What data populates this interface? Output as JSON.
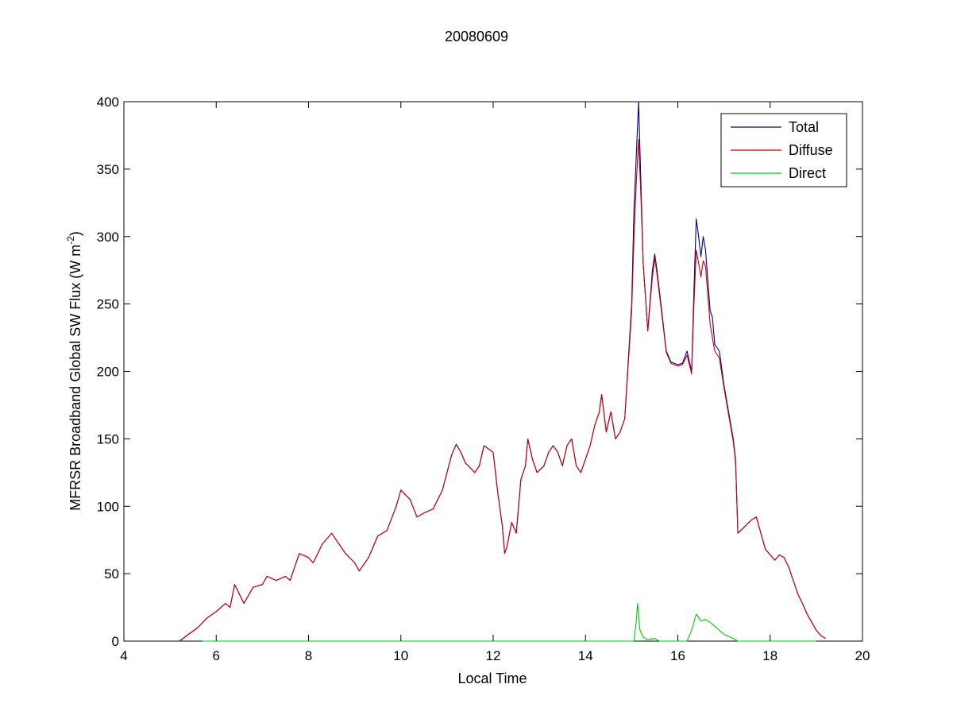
{
  "chart_data": {
    "type": "line",
    "title": "20080609",
    "xlabel": "Local Time",
    "ylabel": "MFRSR Broadband Global SW Flux (W m",
    "ylabel_sup": "-2",
    "ylabel_end": ")",
    "xlim": [
      4,
      20
    ],
    "ylim": [
      0,
      400
    ],
    "xticks": [
      "4",
      "6",
      "8",
      "10",
      "12",
      "14",
      "16",
      "18",
      "20"
    ],
    "yticks": [
      "0",
      "50",
      "100",
      "150",
      "200",
      "250",
      "300",
      "350",
      "400"
    ],
    "grid": false,
    "legend_position": "top-right",
    "series": [
      {
        "name": "Total",
        "color": "#00008b",
        "points": [
          [
            5.2,
            0
          ],
          [
            5.4,
            5
          ],
          [
            5.6,
            10
          ],
          [
            5.8,
            17
          ],
          [
            6.0,
            22
          ],
          [
            6.2,
            28
          ],
          [
            6.3,
            25
          ],
          [
            6.4,
            42
          ],
          [
            6.5,
            35
          ],
          [
            6.6,
            28
          ],
          [
            6.8,
            40
          ],
          [
            7.0,
            42
          ],
          [
            7.1,
            48
          ],
          [
            7.3,
            45
          ],
          [
            7.5,
            48
          ],
          [
            7.6,
            45
          ],
          [
            7.8,
            65
          ],
          [
            8.0,
            62
          ],
          [
            8.1,
            58
          ],
          [
            8.3,
            72
          ],
          [
            8.5,
            80
          ],
          [
            8.6,
            75
          ],
          [
            8.8,
            65
          ],
          [
            9.0,
            58
          ],
          [
            9.1,
            52
          ],
          [
            9.3,
            62
          ],
          [
            9.5,
            78
          ],
          [
            9.7,
            82
          ],
          [
            9.9,
            100
          ],
          [
            10.0,
            112
          ],
          [
            10.2,
            105
          ],
          [
            10.35,
            92
          ],
          [
            10.5,
            95
          ],
          [
            10.7,
            98
          ],
          [
            10.9,
            112
          ],
          [
            11.1,
            138
          ],
          [
            11.2,
            146
          ],
          [
            11.3,
            140
          ],
          [
            11.4,
            132
          ],
          [
            11.6,
            125
          ],
          [
            11.7,
            130
          ],
          [
            11.8,
            145
          ],
          [
            12.0,
            140
          ],
          [
            12.1,
            110
          ],
          [
            12.2,
            85
          ],
          [
            12.25,
            65
          ],
          [
            12.3,
            70
          ],
          [
            12.4,
            88
          ],
          [
            12.5,
            80
          ],
          [
            12.6,
            120
          ],
          [
            12.7,
            130
          ],
          [
            12.75,
            150
          ],
          [
            12.85,
            135
          ],
          [
            12.95,
            125
          ],
          [
            13.1,
            130
          ],
          [
            13.2,
            140
          ],
          [
            13.3,
            145
          ],
          [
            13.4,
            140
          ],
          [
            13.5,
            130
          ],
          [
            13.6,
            145
          ],
          [
            13.7,
            150
          ],
          [
            13.8,
            130
          ],
          [
            13.9,
            125
          ],
          [
            14.0,
            135
          ],
          [
            14.1,
            145
          ],
          [
            14.2,
            160
          ],
          [
            14.3,
            170
          ],
          [
            14.35,
            183
          ],
          [
            14.45,
            155
          ],
          [
            14.55,
            170
          ],
          [
            14.65,
            150
          ],
          [
            14.75,
            155
          ],
          [
            14.85,
            165
          ],
          [
            15.0,
            250
          ],
          [
            15.05,
            320
          ],
          [
            15.1,
            360
          ],
          [
            15.15,
            400
          ],
          [
            15.2,
            340
          ],
          [
            15.25,
            280
          ],
          [
            15.35,
            230
          ],
          [
            15.45,
            275
          ],
          [
            15.5,
            287
          ],
          [
            15.55,
            275
          ],
          [
            15.65,
            245
          ],
          [
            15.75,
            215
          ],
          [
            15.85,
            207
          ],
          [
            16.0,
            205
          ],
          [
            16.1,
            206
          ],
          [
            16.2,
            215
          ],
          [
            16.3,
            200
          ],
          [
            16.35,
            260
          ],
          [
            16.4,
            313
          ],
          [
            16.45,
            300
          ],
          [
            16.5,
            285
          ],
          [
            16.55,
            300
          ],
          [
            16.6,
            290
          ],
          [
            16.7,
            245
          ],
          [
            16.75,
            240
          ],
          [
            16.8,
            220
          ],
          [
            16.9,
            215
          ],
          [
            17.0,
            190
          ],
          [
            17.1,
            170
          ],
          [
            17.2,
            150
          ],
          [
            17.25,
            135
          ],
          [
            17.3,
            80
          ],
          [
            17.45,
            85
          ],
          [
            17.6,
            90
          ],
          [
            17.7,
            92
          ],
          [
            17.8,
            80
          ],
          [
            17.9,
            68
          ],
          [
            18.0,
            64
          ],
          [
            18.1,
            60
          ],
          [
            18.2,
            64
          ],
          [
            18.3,
            62
          ],
          [
            18.4,
            55
          ],
          [
            18.5,
            45
          ],
          [
            18.6,
            35
          ],
          [
            18.7,
            28
          ],
          [
            18.8,
            20
          ],
          [
            18.9,
            14
          ],
          [
            19.0,
            8
          ],
          [
            19.1,
            4
          ],
          [
            19.2,
            2
          ]
        ]
      },
      {
        "name": "Diffuse",
        "color": "#cc0000",
        "points": [
          [
            5.2,
            0
          ],
          [
            5.4,
            5
          ],
          [
            5.6,
            10
          ],
          [
            5.8,
            17
          ],
          [
            6.0,
            22
          ],
          [
            6.2,
            28
          ],
          [
            6.3,
            25
          ],
          [
            6.4,
            42
          ],
          [
            6.5,
            35
          ],
          [
            6.6,
            28
          ],
          [
            6.8,
            40
          ],
          [
            7.0,
            42
          ],
          [
            7.1,
            48
          ],
          [
            7.3,
            45
          ],
          [
            7.5,
            48
          ],
          [
            7.6,
            45
          ],
          [
            7.8,
            65
          ],
          [
            8.0,
            62
          ],
          [
            8.1,
            58
          ],
          [
            8.3,
            72
          ],
          [
            8.5,
            80
          ],
          [
            8.6,
            75
          ],
          [
            8.8,
            65
          ],
          [
            9.0,
            58
          ],
          [
            9.1,
            52
          ],
          [
            9.3,
            62
          ],
          [
            9.5,
            78
          ],
          [
            9.7,
            82
          ],
          [
            9.9,
            100
          ],
          [
            10.0,
            112
          ],
          [
            10.2,
            105
          ],
          [
            10.35,
            92
          ],
          [
            10.5,
            95
          ],
          [
            10.7,
            98
          ],
          [
            10.9,
            112
          ],
          [
            11.1,
            138
          ],
          [
            11.2,
            146
          ],
          [
            11.3,
            140
          ],
          [
            11.4,
            132
          ],
          [
            11.6,
            125
          ],
          [
            11.7,
            130
          ],
          [
            11.8,
            145
          ],
          [
            12.0,
            140
          ],
          [
            12.1,
            110
          ],
          [
            12.2,
            85
          ],
          [
            12.25,
            65
          ],
          [
            12.3,
            70
          ],
          [
            12.4,
            88
          ],
          [
            12.5,
            80
          ],
          [
            12.6,
            120
          ],
          [
            12.7,
            130
          ],
          [
            12.75,
            150
          ],
          [
            12.85,
            135
          ],
          [
            12.95,
            125
          ],
          [
            13.1,
            130
          ],
          [
            13.2,
            140
          ],
          [
            13.3,
            145
          ],
          [
            13.4,
            140
          ],
          [
            13.5,
            130
          ],
          [
            13.6,
            145
          ],
          [
            13.7,
            150
          ],
          [
            13.8,
            130
          ],
          [
            13.9,
            125
          ],
          [
            14.0,
            135
          ],
          [
            14.1,
            145
          ],
          [
            14.2,
            160
          ],
          [
            14.3,
            170
          ],
          [
            14.35,
            183
          ],
          [
            14.45,
            155
          ],
          [
            14.55,
            170
          ],
          [
            14.65,
            150
          ],
          [
            14.75,
            155
          ],
          [
            14.85,
            165
          ],
          [
            15.0,
            245
          ],
          [
            15.05,
            300
          ],
          [
            15.1,
            340
          ],
          [
            15.15,
            372
          ],
          [
            15.2,
            330
          ],
          [
            15.25,
            280
          ],
          [
            15.35,
            230
          ],
          [
            15.45,
            270
          ],
          [
            15.5,
            284
          ],
          [
            15.55,
            272
          ],
          [
            15.65,
            243
          ],
          [
            15.75,
            214
          ],
          [
            15.85,
            206
          ],
          [
            16.0,
            204
          ],
          [
            16.1,
            205
          ],
          [
            16.2,
            212
          ],
          [
            16.3,
            198
          ],
          [
            16.35,
            250
          ],
          [
            16.4,
            290
          ],
          [
            16.45,
            280
          ],
          [
            16.5,
            270
          ],
          [
            16.55,
            282
          ],
          [
            16.6,
            278
          ],
          [
            16.7,
            235
          ],
          [
            16.75,
            225
          ],
          [
            16.8,
            215
          ],
          [
            16.9,
            210
          ],
          [
            17.0,
            188
          ],
          [
            17.1,
            168
          ],
          [
            17.2,
            148
          ],
          [
            17.25,
            133
          ],
          [
            17.3,
            80
          ],
          [
            17.45,
            85
          ],
          [
            17.6,
            90
          ],
          [
            17.7,
            92
          ],
          [
            17.8,
            80
          ],
          [
            17.9,
            68
          ],
          [
            18.0,
            64
          ],
          [
            18.1,
            60
          ],
          [
            18.2,
            64
          ],
          [
            18.3,
            62
          ],
          [
            18.4,
            55
          ],
          [
            18.5,
            45
          ],
          [
            18.6,
            35
          ],
          [
            18.7,
            28
          ],
          [
            18.8,
            20
          ],
          [
            18.9,
            14
          ],
          [
            19.0,
            8
          ],
          [
            19.1,
            4
          ],
          [
            19.2,
            2
          ]
        ]
      },
      {
        "name": "Direct",
        "color": "#00cc00",
        "points": [
          [
            5.7,
            0
          ],
          [
            15.05,
            0
          ],
          [
            15.1,
            15
          ],
          [
            15.13,
            28
          ],
          [
            15.18,
            8
          ],
          [
            15.25,
            3
          ],
          [
            15.35,
            1
          ],
          [
            15.5,
            2
          ],
          [
            15.6,
            0
          ],
          [
            16.2,
            0
          ],
          [
            16.3,
            8
          ],
          [
            16.4,
            20
          ],
          [
            16.5,
            15
          ],
          [
            16.6,
            16
          ],
          [
            16.7,
            14
          ],
          [
            16.8,
            11
          ],
          [
            16.9,
            8
          ],
          [
            17.0,
            5
          ],
          [
            17.2,
            2
          ],
          [
            17.3,
            0
          ],
          [
            19.0,
            0
          ]
        ]
      }
    ]
  }
}
